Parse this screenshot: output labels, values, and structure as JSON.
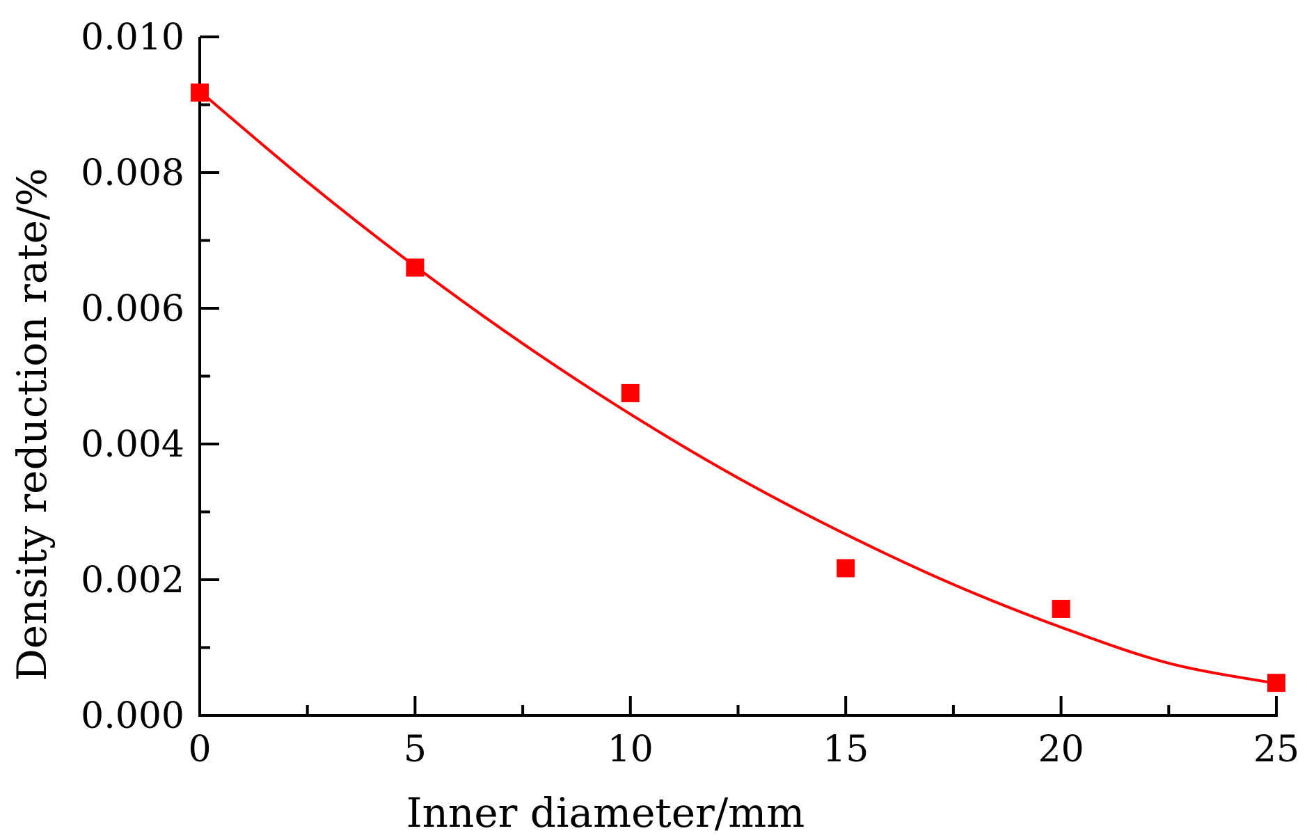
{
  "chart_data": {
    "type": "scatter",
    "title": "",
    "xlabel": "Inner diameter/mm",
    "ylabel": "Density reduction rate/%",
    "xlim": [
      0,
      25
    ],
    "ylim": [
      0,
      0.01
    ],
    "x_ticks": [
      "0",
      "5",
      "10",
      "15",
      "20",
      "25"
    ],
    "y_ticks": [
      "0.000",
      "0.002",
      "0.004",
      "0.006",
      "0.008",
      "0.010"
    ],
    "x_tick_values": [
      0,
      5,
      10,
      15,
      20,
      25
    ],
    "y_tick_values": [
      0,
      0.002,
      0.004,
      0.006,
      0.008,
      0.01
    ],
    "x_minor_tick_values": [
      2.5,
      7.5,
      12.5,
      17.5,
      22.5
    ],
    "y_minor_tick_values": [
      0.001,
      0.003,
      0.005,
      0.007,
      0.009
    ],
    "grid": false,
    "series": [
      {
        "kind": "scatter",
        "marker": "square",
        "color": "#ff0000",
        "x": [
          0,
          5,
          10,
          15,
          20,
          25
        ],
        "y": [
          0.00918,
          0.0066,
          0.00475,
          0.00217,
          0.00157,
          0.00048
        ]
      },
      {
        "kind": "line",
        "color": "#ff0000",
        "x": [
          0,
          2.5,
          5,
          7.5,
          10,
          12.5,
          15,
          17.5,
          20,
          22.5,
          25
        ],
        "y": [
          0.0092,
          0.00786,
          0.00662,
          0.00548,
          0.00444,
          0.0035,
          0.00267,
          0.00193,
          0.0013,
          0.00077,
          0.00047
        ]
      }
    ]
  }
}
